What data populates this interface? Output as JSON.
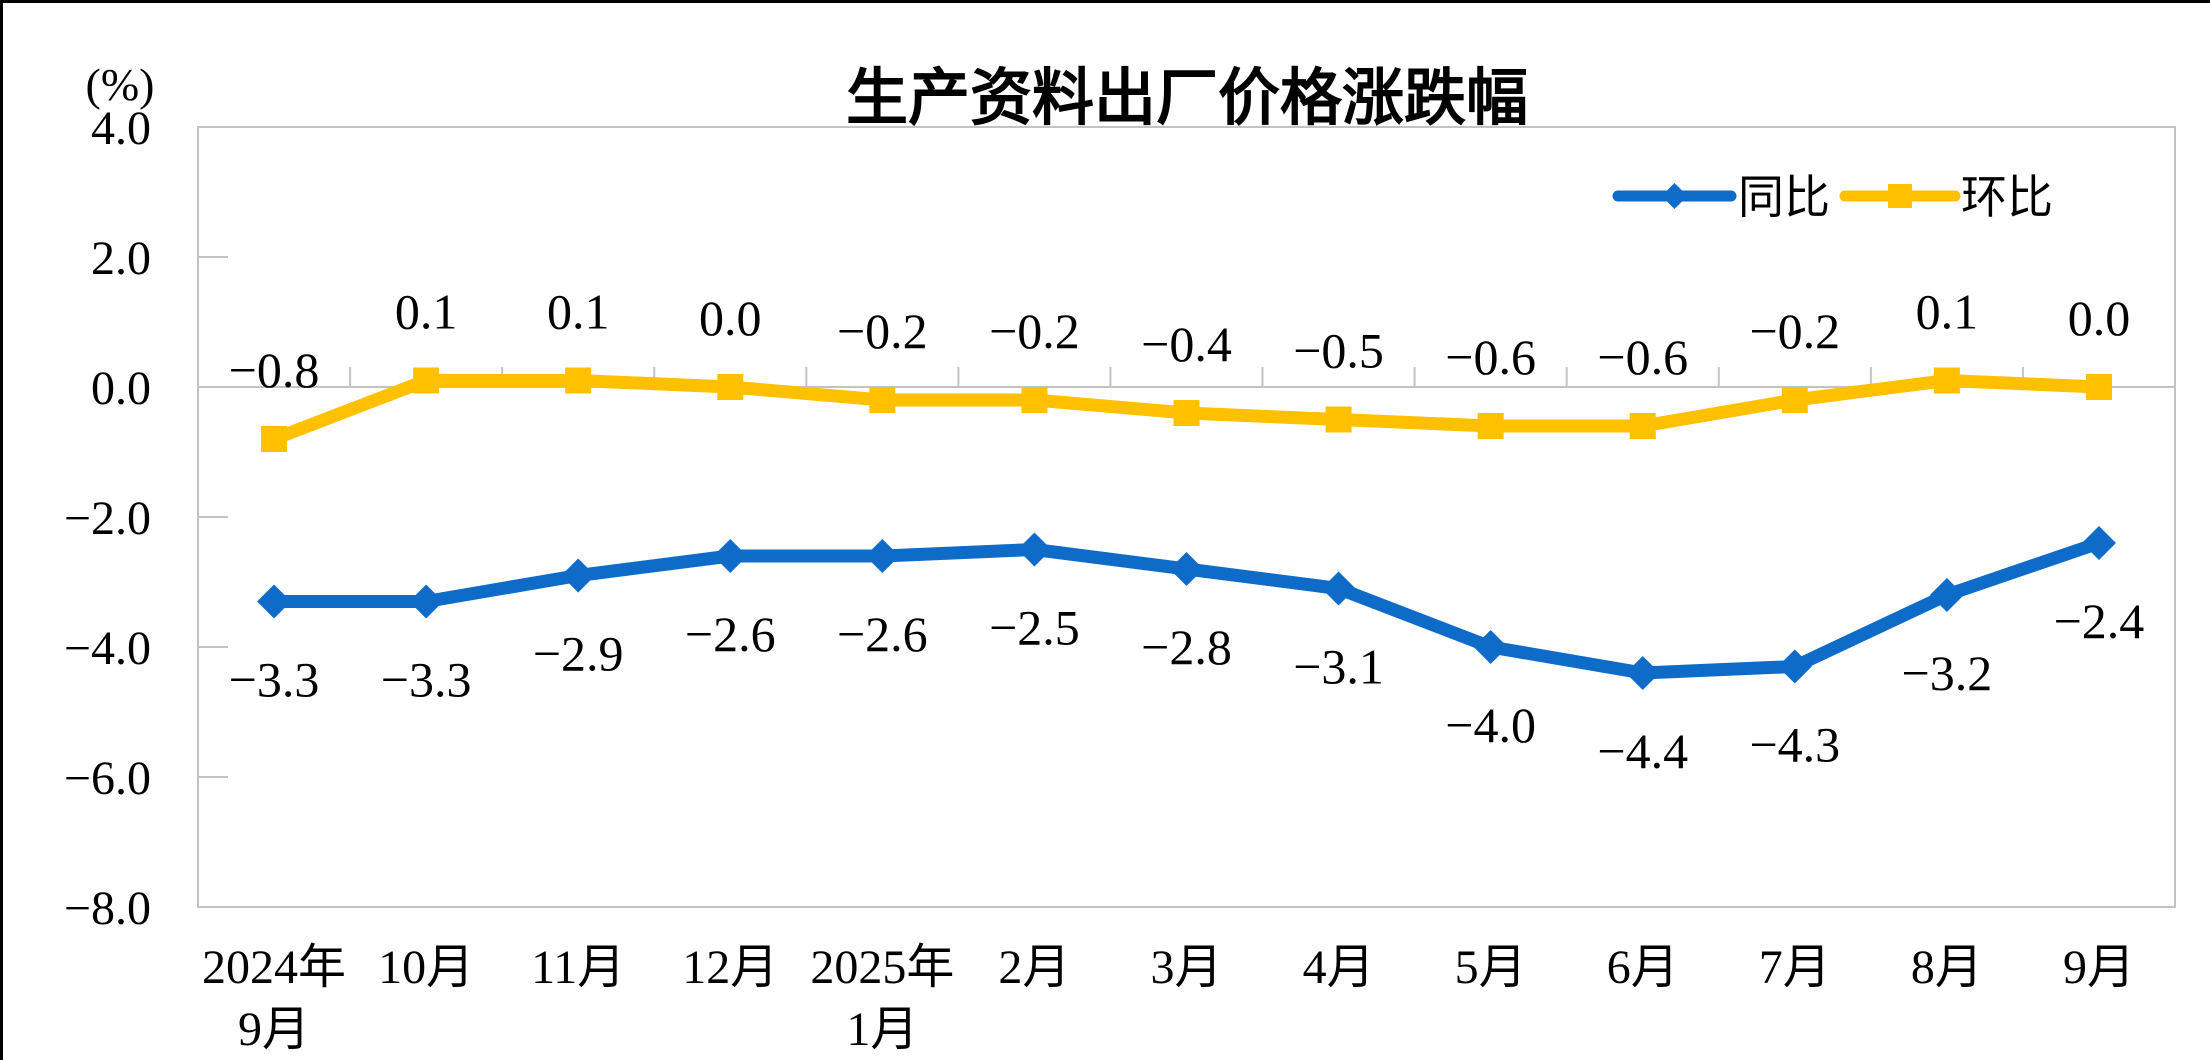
{
  "page": {
    "background_color": "#FFFFFF",
    "frame_color": "#000000"
  },
  "chart_data": {
    "type": "line",
    "title": "生产资料出厂价格涨跌幅",
    "unit_label": "(%)",
    "categories": [
      [
        "2024年",
        "9月"
      ],
      [
        "10月"
      ],
      [
        "11月"
      ],
      [
        "12月"
      ],
      [
        "2025年",
        "1月"
      ],
      [
        "2月"
      ],
      [
        "3月"
      ],
      [
        "4月"
      ],
      [
        "5月"
      ],
      [
        "6月"
      ],
      [
        "7月"
      ],
      [
        "8月"
      ],
      [
        "9月"
      ]
    ],
    "series": [
      {
        "name": "同比",
        "color": "#0E6CC8",
        "marker": "diamond",
        "values": [
          -3.3,
          -3.3,
          -2.9,
          -2.6,
          -2.6,
          -2.5,
          -2.8,
          -3.1,
          -4.0,
          -4.4,
          -4.3,
          -3.2,
          -2.4
        ]
      },
      {
        "name": "环比",
        "color": "#FFC000",
        "marker": "square",
        "values": [
          -0.8,
          0.1,
          0.1,
          0.0,
          -0.2,
          -0.2,
          -0.4,
          -0.5,
          -0.6,
          -0.6,
          -0.2,
          0.1,
          0.0
        ]
      }
    ],
    "y_ticks": [
      "4.0",
      "2.0",
      "0.0",
      "-2.0",
      "-4.0",
      "-6.0",
      "-8.0"
    ],
    "ylim": [
      -8.0,
      4.0
    ],
    "xlabel": "",
    "ylabel": "(%)",
    "grid": "zero-baseline-only",
    "data_labels_visible": true,
    "legend_position": "top-right",
    "axis_color": "#C3C3C3",
    "text_color": "#000000"
  }
}
